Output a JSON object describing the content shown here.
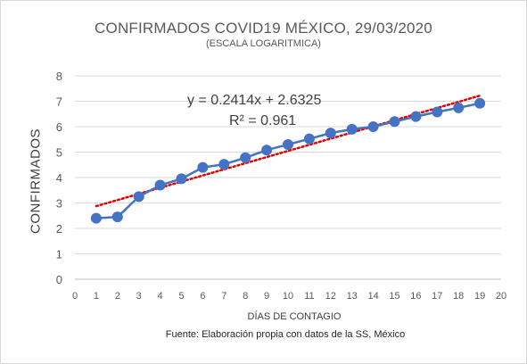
{
  "chart_data": {
    "type": "line",
    "title": "CONFIRMADOS COVID19 MÉXICO, 29/03/2020",
    "subtitle": "(ESCALA LOGARITMICA)",
    "xlabel": "DÍAS DE CONTAGIO",
    "ylabel": "CONFIRMADOS",
    "source": "Fuente: Elaboración propia con datos de la SS, México",
    "xlim": [
      0,
      20
    ],
    "ylim": [
      0,
      8
    ],
    "x_ticks": [
      0,
      1,
      2,
      3,
      4,
      5,
      6,
      7,
      8,
      9,
      10,
      11,
      12,
      13,
      14,
      15,
      16,
      17,
      18,
      19,
      20
    ],
    "y_ticks": [
      0,
      1,
      2,
      3,
      4,
      5,
      6,
      7,
      8
    ],
    "grid": "horizontal",
    "series": [
      {
        "x": [
          1,
          2,
          3,
          4,
          5,
          6,
          7,
          8,
          9,
          10,
          11,
          12,
          13,
          14,
          15,
          16,
          17,
          18,
          19
        ],
        "y": [
          2.4,
          2.45,
          3.25,
          3.7,
          3.95,
          4.4,
          4.52,
          4.78,
          5.08,
          5.3,
          5.52,
          5.75,
          5.9,
          6.0,
          6.2,
          6.4,
          6.58,
          6.74,
          6.92
        ],
        "color": "#4472c4"
      }
    ],
    "trendline": {
      "type": "linear",
      "slope": 0.2414,
      "intercept": 2.6325,
      "x_range": [
        1,
        19
      ],
      "color": "#e00000",
      "equation_label": "y = 0.2414x + 2.6325",
      "r2_label": "R² = 0.961"
    }
  }
}
